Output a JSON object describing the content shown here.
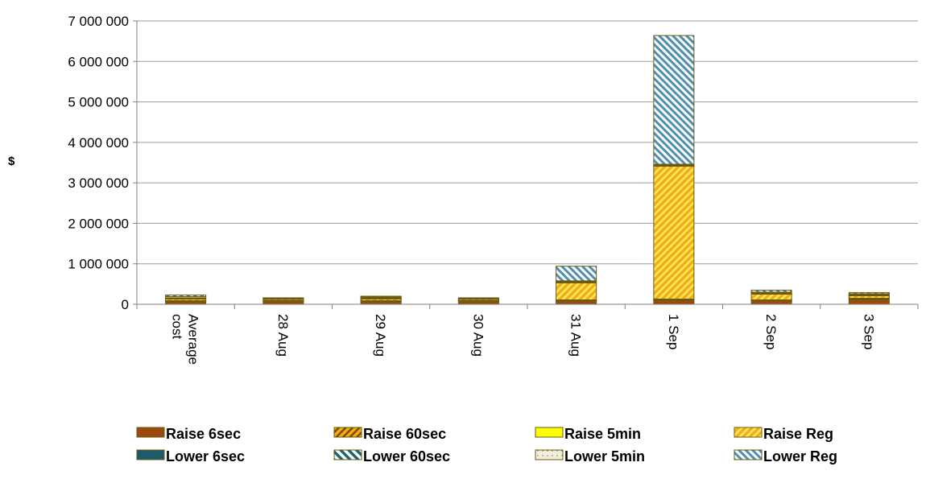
{
  "chart_data": {
    "type": "bar",
    "stacked": true,
    "title": "",
    "xlabel": "",
    "ylabel": "$",
    "ylim": [
      0,
      7000000
    ],
    "yticks": [
      0,
      1000000,
      2000000,
      3000000,
      4000000,
      5000000,
      6000000,
      7000000
    ],
    "ytick_labels": [
      "0",
      "1 000 000",
      "2 000 000",
      "3 000 000",
      "4 000 000",
      "5 000 000",
      "6 000 000",
      "7 000 000"
    ],
    "grid": true,
    "legend_position": "bottom",
    "categories": [
      "Average cost",
      "28 Aug",
      "29 Aug",
      "30 Aug",
      "31 Aug",
      "1 Sep",
      "2 Sep",
      "3 Sep"
    ],
    "series": [
      {
        "name": "Raise 6sec",
        "color": "#9c4a0c",
        "pattern": "solid",
        "values": [
          60000,
          70000,
          60000,
          60000,
          80000,
          100000,
          80000,
          120000
        ]
      },
      {
        "name": "Raise 60sec",
        "color": "#f2b010",
        "pattern": "stripe-dark",
        "values": [
          20000,
          20000,
          20000,
          20000,
          20000,
          20000,
          20000,
          20000
        ]
      },
      {
        "name": "Raise 5min",
        "color": "#ffff00",
        "pattern": "solid",
        "values": [
          10000,
          10000,
          10000,
          10000,
          10000,
          10000,
          10000,
          10000
        ]
      },
      {
        "name": "Raise Reg",
        "color": "#f2b010",
        "pattern": "stripe-yellow",
        "values": [
          40000,
          30000,
          40000,
          30000,
          420000,
          3280000,
          140000,
          60000
        ]
      },
      {
        "name": "Lower 6sec",
        "color": "#1f5a6b",
        "pattern": "solid",
        "values": [
          10000,
          10000,
          10000,
          10000,
          10000,
          10000,
          10000,
          10000
        ]
      },
      {
        "name": "Lower 60sec",
        "color": "#1f6470",
        "pattern": "stripe-teal",
        "values": [
          20000,
          10000,
          20000,
          10000,
          20000,
          20000,
          20000,
          20000
        ]
      },
      {
        "name": "Lower 5min",
        "color": "#f3eedc",
        "pattern": "dots",
        "values": [
          30000,
          0,
          20000,
          20000,
          20000,
          20000,
          20000,
          20000
        ]
      },
      {
        "name": "Lower Reg",
        "color": "#9fc5d8",
        "pattern": "stripe-lightblue",
        "values": [
          40000,
          10000,
          20000,
          0,
          360000,
          3180000,
          50000,
          30000
        ]
      }
    ]
  }
}
